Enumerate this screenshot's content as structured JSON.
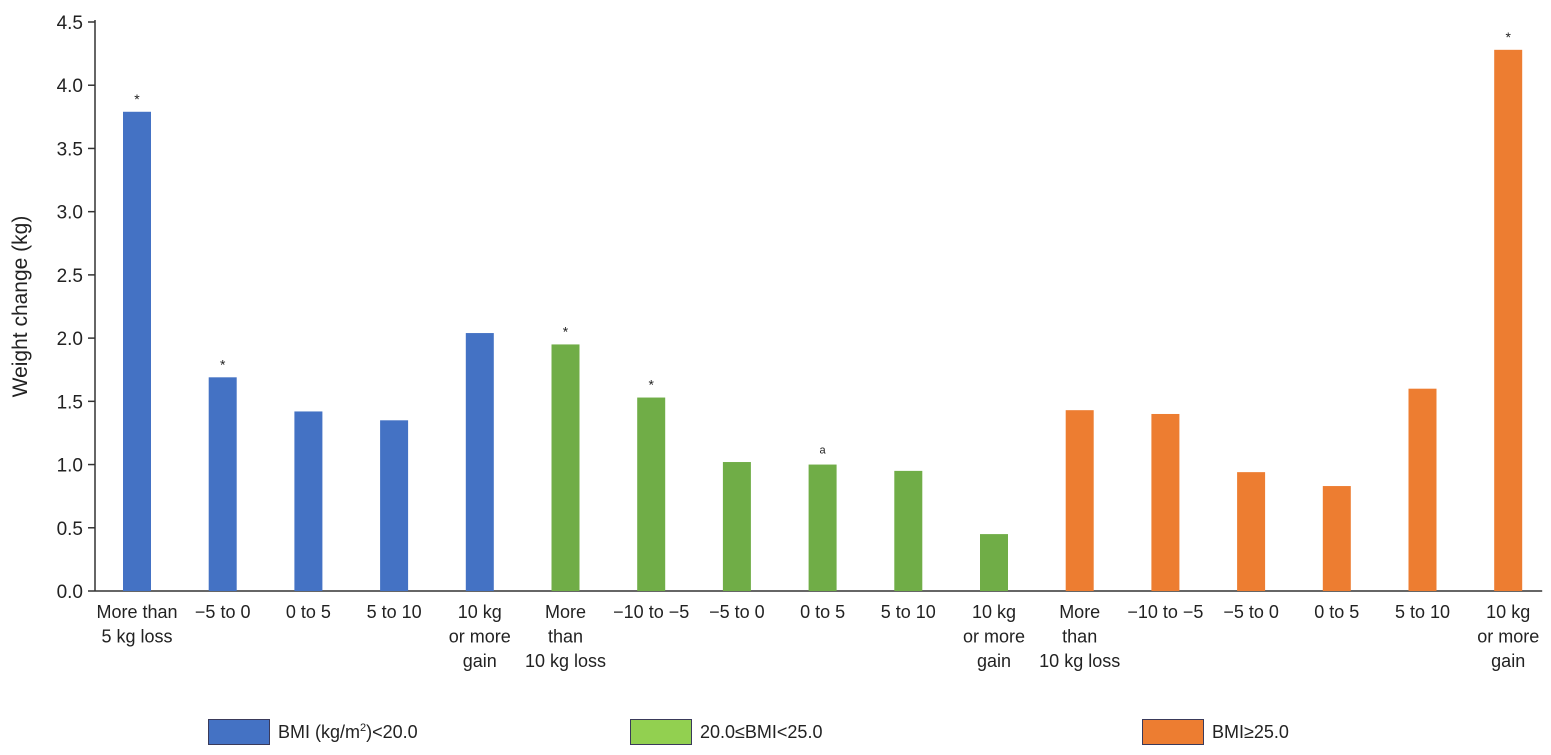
{
  "chart_data": {
    "type": "bar",
    "ylabel": "Weight change (kg)",
    "xlabel": "",
    "title": "",
    "ylim": [
      0,
      4.5
    ],
    "yticks": [
      "0.0",
      "0.5",
      "1.0",
      "1.5",
      "2.0",
      "2.5",
      "3.0",
      "3.5",
      "4.0",
      "4.5"
    ],
    "grid": false,
    "legend_position": "bottom",
    "groups": [
      {
        "name": "BMI (kg/m2)<20.0",
        "color": "#4472C4",
        "legend_color": "#4472C4",
        "bars": [
          {
            "label": [
              "More than",
              "5 kg loss"
            ],
            "value": 3.79,
            "annotation": "*"
          },
          {
            "label": [
              "−5 to 0"
            ],
            "value": 1.69,
            "annotation": "*"
          },
          {
            "label": [
              "0 to 5"
            ],
            "value": 1.42,
            "annotation": ""
          },
          {
            "label": [
              "5 to 10"
            ],
            "value": 1.35,
            "annotation": ""
          },
          {
            "label": [
              "10 kg",
              "or more",
              "gain"
            ],
            "value": 2.04,
            "annotation": ""
          }
        ]
      },
      {
        "name": "20.0≤BMI<25.0",
        "color": "#70AD47",
        "legend_color": "#92D050",
        "bars": [
          {
            "label": [
              "More",
              "than",
              "10 kg loss"
            ],
            "value": 1.95,
            "annotation": "*"
          },
          {
            "label": [
              "−10 to −5"
            ],
            "value": 1.53,
            "annotation": "*"
          },
          {
            "label": [
              "−5 to 0"
            ],
            "value": 1.02,
            "annotation": ""
          },
          {
            "label": [
              "0 to 5"
            ],
            "value": 1.0,
            "annotation": "a"
          },
          {
            "label": [
              "5 to 10"
            ],
            "value": 0.95,
            "annotation": ""
          },
          {
            "label": [
              "10 kg",
              "or more",
              "gain"
            ],
            "value": 0.45,
            "annotation": ""
          }
        ]
      },
      {
        "name": "BMI≥25.0",
        "color": "#ED7D31",
        "legend_color": "#ED7D31",
        "bars": [
          {
            "label": [
              "More",
              "than",
              "10 kg loss"
            ],
            "value": 1.43,
            "annotation": ""
          },
          {
            "label": [
              "−10 to −5"
            ],
            "value": 1.4,
            "annotation": ""
          },
          {
            "label": [
              "−5 to 0"
            ],
            "value": 0.94,
            "annotation": ""
          },
          {
            "label": [
              "0 to 5"
            ],
            "value": 0.83,
            "annotation": ""
          },
          {
            "label": [
              "5 to 10"
            ],
            "value": 1.6,
            "annotation": ""
          },
          {
            "label": [
              "10 kg",
              "or more",
              "gain"
            ],
            "value": 4.28,
            "annotation": "*"
          }
        ]
      }
    ],
    "legend": {
      "items": [
        {
          "text_before": "BMI (kg/m",
          "superscript": "2",
          "text_after": ")<20.0"
        },
        {
          "text_before": "20.0≤BMI<25.0",
          "superscript": "",
          "text_after": ""
        },
        {
          "text_before": "BMI≥25.0",
          "superscript": "",
          "text_after": ""
        }
      ]
    }
  }
}
